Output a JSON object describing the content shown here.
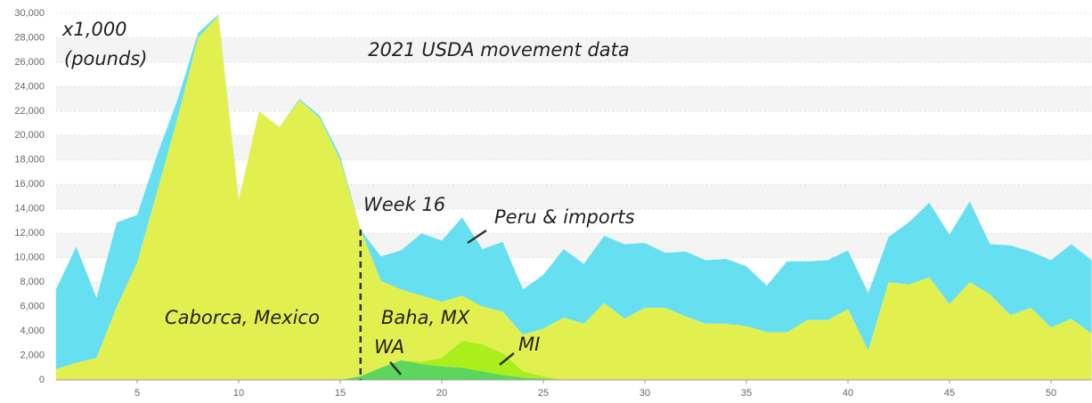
{
  "chart_data": {
    "type": "area",
    "stacked": true,
    "title": "2021 USDA movement data",
    "y_label_lines": [
      "x1,000",
      "(pounds)"
    ],
    "marker_label": "Week 16",
    "marker_x": 16,
    "region_labels": [
      "Caborca, Mexico",
      "Baha, MX"
    ],
    "x": [
      1,
      2,
      3,
      4,
      5,
      6,
      7,
      8,
      9,
      10,
      11,
      12,
      13,
      14,
      15,
      16,
      17,
      18,
      19,
      20,
      21,
      22,
      23,
      24,
      25,
      26,
      27,
      28,
      29,
      30,
      31,
      32,
      33,
      34,
      35,
      36,
      37,
      38,
      39,
      40,
      41,
      42,
      43,
      44,
      45,
      46,
      47,
      48,
      49,
      50,
      51,
      52
    ],
    "xlim": [
      1,
      52
    ],
    "xticks": [
      5,
      10,
      15,
      20,
      25,
      30,
      35,
      40,
      45,
      50
    ],
    "ylim": [
      0,
      30000
    ],
    "yticks": [
      0,
      {
        "value": 2000,
        "label": "2,000"
      },
      {
        "value": 4000,
        "label": "4,000"
      },
      {
        "value": 6000,
        "label": "6,000"
      },
      {
        "value": 8000,
        "label": "8,000"
      },
      {
        "value": 10000,
        "label": "10,000"
      },
      {
        "value": 12000,
        "label": "12,000"
      },
      {
        "value": 14000,
        "label": "14,000"
      },
      {
        "value": 16000,
        "label": "16,000"
      },
      {
        "value": 18000,
        "label": "18,000"
      },
      {
        "value": 20000,
        "label": "20,000"
      },
      {
        "value": 22000,
        "label": "22,000"
      },
      {
        "value": 24000,
        "label": "24,000"
      },
      {
        "value": 26000,
        "label": "26,000"
      },
      {
        "value": 28000,
        "label": "28,000"
      },
      {
        "value": 30000,
        "label": "30,000"
      }
    ],
    "grid": true,
    "series": [
      {
        "name": "WA",
        "color": "#5cd65c",
        "values": [
          0,
          0,
          0,
          0,
          0,
          0,
          0,
          0,
          0,
          0,
          0,
          0,
          0,
          0,
          0,
          300,
          1000,
          1600,
          1300,
          1100,
          1000,
          700,
          400,
          200,
          100,
          0,
          0,
          0,
          0,
          0,
          0,
          0,
          0,
          0,
          0,
          0,
          0,
          0,
          0,
          0,
          0,
          0,
          0,
          0,
          0,
          0,
          0,
          0,
          0,
          0,
          0,
          0
        ]
      },
      {
        "name": "MI",
        "color": "#aaef1c",
        "values": [
          0,
          0,
          0,
          0,
          0,
          0,
          0,
          0,
          0,
          0,
          0,
          0,
          0,
          0,
          0,
          0,
          0,
          0,
          200,
          700,
          2200,
          2200,
          1800,
          500,
          200,
          0,
          0,
          0,
          0,
          0,
          0,
          0,
          0,
          0,
          0,
          0,
          0,
          0,
          0,
          0,
          0,
          0,
          0,
          0,
          0,
          0,
          0,
          0,
          0,
          0,
          0,
          0
        ]
      },
      {
        "color": "#e2f04f",
        "values": [
          870,
          1400,
          1800,
          6000,
          9600,
          15500,
          21500,
          28000,
          29800,
          14700,
          22000,
          20700,
          22900,
          21400,
          18000,
          12000,
          7100,
          5800,
          5400,
          4600,
          3700,
          3100,
          3400,
          3000,
          3900,
          5100,
          4600,
          6300,
          5000,
          5900,
          5900,
          5200,
          4600,
          4600,
          4400,
          3900,
          3900,
          4900,
          4900,
          5800,
          2400,
          8000,
          7800,
          8400,
          6200,
          8000,
          7000,
          5300,
          5900,
          4300,
          5000,
          3800
        ]
      },
      {
        "name": "Peru & imports",
        "color": "#66e0f0",
        "values": [
          6530,
          9500,
          4900,
          6900,
          3900,
          3000,
          1500,
          400,
          100,
          0,
          0,
          0,
          100,
          200,
          300,
          0,
          2000,
          3200,
          5100,
          5000,
          6400,
          4700,
          5700,
          3700,
          4400,
          5600,
          4900,
          5500,
          6100,
          5300,
          4500,
          5300,
          5200,
          5300,
          4900,
          3800,
          5800,
          4800,
          4900,
          4800,
          4700,
          3700,
          5100,
          6100,
          5700,
          6600,
          4100,
          5700,
          4600,
          5500,
          6100,
          6000
        ]
      }
    ]
  }
}
